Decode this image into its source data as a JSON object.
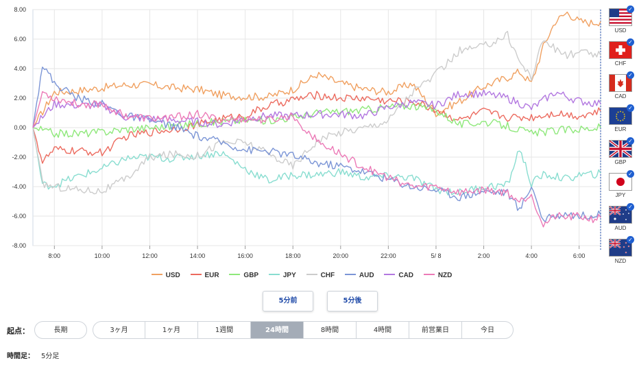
{
  "chart_data": {
    "type": "line",
    "y_ticks": [
      "8.00",
      "6.00",
      "4.00",
      "2.00",
      "0.00",
      "-2.00",
      "-4.00",
      "-6.00",
      "-8.00"
    ],
    "x_ticks": [
      "8:00",
      "10:00",
      "12:00",
      "14:00",
      "16:00",
      "18:00",
      "20:00",
      "22:00",
      "5/ 8",
      "2:00",
      "4:00",
      "6:00"
    ],
    "x_tick_hours": [
      8,
      10,
      12,
      14,
      16,
      18,
      20,
      22,
      24,
      26,
      28,
      30
    ],
    "x_range_hours": [
      7.1,
      30.9
    ],
    "ylim": [
      -8,
      8
    ],
    "series": [
      {
        "name": "USD",
        "color": "#f0a060",
        "x": [
          7.1,
          8,
          9,
          10,
          11,
          12,
          13,
          14,
          15,
          16,
          17,
          18,
          19,
          20,
          21,
          22,
          23,
          24,
          25,
          26,
          27,
          27.5,
          28,
          28.5,
          29,
          29.5,
          30,
          30.5,
          30.9
        ],
        "y": [
          0,
          2.4,
          2.5,
          2.7,
          2.9,
          2.9,
          2.7,
          2.6,
          2.2,
          2.1,
          2.1,
          2.6,
          3.6,
          3.0,
          2.6,
          2.4,
          3.0,
          1.0,
          1.8,
          2.8,
          3.4,
          3.8,
          3.0,
          5.5,
          7.2,
          7.8,
          7.2,
          7.1,
          7.2
        ]
      },
      {
        "name": "EUR",
        "color": "#ec6a5e",
        "x": [
          7.1,
          7.5,
          8,
          9,
          10,
          11,
          12,
          13,
          14,
          15,
          16,
          17,
          18,
          19,
          20,
          21,
          22,
          23,
          24,
          25,
          26,
          27,
          28,
          29,
          30,
          30.9
        ],
        "y": [
          0,
          -2.3,
          -1.5,
          -1.6,
          -1.7,
          -0.6,
          -0.3,
          -0.1,
          0.2,
          0.6,
          0.8,
          1.5,
          1.9,
          2.2,
          2.0,
          2.0,
          1.8,
          1.8,
          1.2,
          0.5,
          1.1,
          0.7,
          0.7,
          1.0,
          0.8,
          1.1
        ]
      },
      {
        "name": "GBP",
        "color": "#8ee87a",
        "x": [
          7.1,
          8,
          9,
          10,
          11,
          12,
          13,
          14,
          15,
          16,
          17,
          18,
          19,
          20,
          21,
          22,
          23,
          24,
          25,
          26,
          27,
          28,
          29,
          30,
          30.9
        ],
        "y": [
          0,
          -0.4,
          -0.4,
          -0.3,
          -0.1,
          0.0,
          0.1,
          0.3,
          0.4,
          0.5,
          0.5,
          0.7,
          1.0,
          1.1,
          1.2,
          1.4,
          1.5,
          1.2,
          0.2,
          0.4,
          0.1,
          -0.4,
          -0.2,
          -0.1,
          0.0
        ]
      },
      {
        "name": "JPY",
        "color": "#88ddd0",
        "x": [
          7.1,
          7.5,
          8,
          9,
          10,
          11,
          12,
          13,
          14,
          15,
          16,
          17,
          18,
          19,
          20,
          21,
          22,
          23,
          24,
          25,
          26,
          27,
          27.5,
          28,
          28.5,
          29,
          29.5,
          30,
          30.5,
          30.9
        ],
        "y": [
          0,
          -3.9,
          -3.9,
          -3.3,
          -2.8,
          -2.1,
          -2.0,
          -2.1,
          -1.9,
          -1.7,
          -2.8,
          -3.6,
          -3.2,
          -3.2,
          -3.0,
          -3.4,
          -3.3,
          -3.4,
          -4.2,
          -4.4,
          -4.0,
          -3.9,
          -1.4,
          -3.8,
          -3.2,
          -3.3,
          -3.5,
          -3.2,
          -3.2,
          -3.1
        ]
      },
      {
        "name": "CHF",
        "color": "#cccccc",
        "x": [
          7.1,
          7.5,
          8,
          9,
          10,
          11,
          12,
          13,
          14,
          15,
          16,
          17,
          18,
          19,
          20,
          21,
          22,
          23,
          24,
          25,
          26,
          27,
          27.5,
          28,
          28.5,
          29,
          29.5,
          30,
          30.5,
          30.9
        ],
        "y": [
          0,
          -3.8,
          -4.0,
          -4.2,
          -4.3,
          -3.5,
          -2.0,
          -1.8,
          -1.9,
          -1.0,
          -1.0,
          -1.8,
          -2.6,
          -0.9,
          -0.3,
          0.0,
          0.5,
          2.4,
          3.6,
          5.2,
          5.5,
          6.3,
          4.5,
          3.4,
          6.0,
          5.3,
          4.9,
          5.1,
          5.0,
          4.9
        ]
      },
      {
        "name": "AUD",
        "color": "#7b95d6",
        "x": [
          7.1,
          7.5,
          8,
          9,
          10,
          11,
          12,
          13,
          14,
          15,
          16,
          17,
          18,
          19,
          20,
          21,
          22,
          23,
          24,
          25,
          26,
          27,
          27.5,
          28,
          28.5,
          29,
          29.5,
          30,
          30.5,
          30.9
        ],
        "y": [
          0,
          4.3,
          3.0,
          2.0,
          1.6,
          0.8,
          0.5,
          0.1,
          -0.6,
          -1.0,
          -1.5,
          -1.6,
          -1.9,
          -2.4,
          -2.6,
          -3.0,
          -3.5,
          -4.0,
          -4.2,
          -4.7,
          -4.3,
          -4.4,
          -5.6,
          -3.9,
          -6.3,
          -6.0,
          -5.8,
          -6.0,
          -5.9,
          -5.9
        ]
      },
      {
        "name": "CAD",
        "color": "#b277e0",
        "x": [
          7.1,
          8,
          9,
          10,
          11,
          12,
          13,
          14,
          15,
          16,
          17,
          18,
          19,
          20,
          21,
          22,
          23,
          24,
          25,
          26,
          27,
          28,
          29,
          30,
          30.9
        ],
        "y": [
          0,
          1.6,
          1.5,
          1.5,
          0.7,
          0.6,
          0.5,
          0.4,
          0.2,
          0.6,
          0.8,
          0.8,
          0.9,
          0.9,
          0.8,
          1.4,
          1.7,
          1.5,
          2.3,
          2.3,
          2.0,
          1.3,
          2.4,
          1.8,
          1.6
        ]
      },
      {
        "name": "NZD",
        "color": "#ec7ab7",
        "x": [
          7.1,
          7.5,
          8,
          9,
          10,
          11,
          12,
          13,
          14,
          15,
          16,
          17,
          18,
          19,
          20,
          21,
          22,
          23,
          24,
          25,
          26,
          27,
          27.5,
          28,
          28.5,
          29,
          29.5,
          30,
          30.5,
          30.9
        ],
        "y": [
          0,
          2.4,
          2.0,
          1.6,
          1.6,
          0.8,
          0.6,
          0.7,
          0.9,
          0.5,
          0.6,
          0.5,
          0.8,
          -0.9,
          -1.8,
          -2.7,
          -3.4,
          -4.0,
          -4.0,
          -4.4,
          -4.2,
          -4.4,
          -5.0,
          -4.5,
          -6.6,
          -6.0,
          -6.1,
          -6.0,
          -6.2,
          -6.1
        ]
      }
    ]
  },
  "currencies": [
    {
      "code": "USD",
      "checked": true
    },
    {
      "code": "CHF",
      "checked": true
    },
    {
      "code": "CAD",
      "checked": true
    },
    {
      "code": "EUR",
      "checked": true
    },
    {
      "code": "GBP",
      "checked": true
    },
    {
      "code": "JPY",
      "checked": true
    },
    {
      "code": "AUD",
      "checked": true
    },
    {
      "code": "NZD",
      "checked": true
    }
  ],
  "check_mark": "✓",
  "nav": {
    "prev_label": "5分前",
    "next_label": "5分後"
  },
  "period": {
    "label": "起点：",
    "options": [
      "長期",
      "3ヶ月",
      "1ヶ月",
      "1週間",
      "24時間",
      "8時間",
      "4時間",
      "前営業日",
      "今日"
    ],
    "active": "24時間"
  },
  "timeframe": {
    "label": "時間足：",
    "value": "5分足"
  },
  "colors": {
    "accent": "#1f4aa8",
    "grid": "#e6e6e6",
    "active_tab": "#a4acb7",
    "check": "#1f5fd0"
  }
}
